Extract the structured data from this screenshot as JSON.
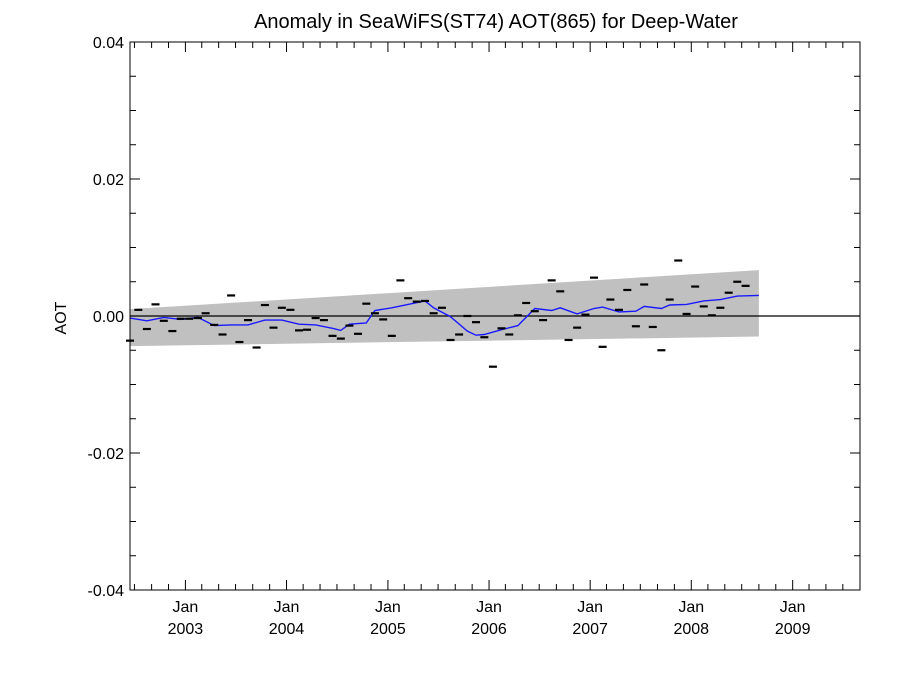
{
  "chart_data": {
    "type": "scatter",
    "title": "Anomaly in SeaWiFS(ST74) AOT(865) for Deep-Water",
    "xlabel": "",
    "ylabel": "AOT",
    "ylim": [
      -0.04,
      0.04
    ],
    "xlim": [
      "2002-06-15",
      "2009-09-01"
    ],
    "yticks": [
      "0.04",
      "0.02",
      "0.00",
      "-0.02",
      "-0.04"
    ],
    "xticks": [
      {
        "date": "2003-01-01",
        "line1": "Jan",
        "line2": "2003"
      },
      {
        "date": "2004-01-01",
        "line1": "Jan",
        "line2": "2004"
      },
      {
        "date": "2005-01-01",
        "line1": "Jan",
        "line2": "2005"
      },
      {
        "date": "2006-01-01",
        "line1": "Jan",
        "line2": "2006"
      },
      {
        "date": "2007-01-01",
        "line1": "Jan",
        "line2": "2007"
      },
      {
        "date": "2008-01-01",
        "line1": "Jan",
        "line2": "2008"
      },
      {
        "date": "2009-01-01",
        "line1": "Jan",
        "line2": "2009"
      }
    ],
    "grid": false,
    "legend": "none",
    "colors": {
      "points": "#000000",
      "smoothed": "#1a1aff",
      "band": "#c0c0c0",
      "zero_line": "#000000"
    },
    "points": [
      {
        "x": "2002-06-15",
        "y": -0.0036
      },
      {
        "x": "2002-07-15",
        "y": 0.0009
      },
      {
        "x": "2002-08-15",
        "y": -0.0019
      },
      {
        "x": "2002-09-15",
        "y": 0.0017
      },
      {
        "x": "2002-10-15",
        "y": -0.0007
      },
      {
        "x": "2002-11-15",
        "y": -0.0022
      },
      {
        "x": "2002-12-15",
        "y": -0.0004
      },
      {
        "x": "2003-01-15",
        "y": -0.0004
      },
      {
        "x": "2003-02-15",
        "y": -0.0003
      },
      {
        "x": "2003-03-15",
        "y": 0.0004
      },
      {
        "x": "2003-04-15",
        "y": -0.0013
      },
      {
        "x": "2003-05-15",
        "y": -0.0027
      },
      {
        "x": "2003-06-15",
        "y": 0.003
      },
      {
        "x": "2003-07-15",
        "y": -0.0038
      },
      {
        "x": "2003-08-15",
        "y": -0.0006
      },
      {
        "x": "2003-09-15",
        "y": -0.0046
      },
      {
        "x": "2003-10-15",
        "y": 0.0016
      },
      {
        "x": "2003-11-15",
        "y": -0.0017
      },
      {
        "x": "2003-12-15",
        "y": 0.0012
      },
      {
        "x": "2004-01-15",
        "y": 0.0009
      },
      {
        "x": "2004-02-15",
        "y": -0.0021
      },
      {
        "x": "2004-03-15",
        "y": -0.002
      },
      {
        "x": "2004-04-15",
        "y": -0.0003
      },
      {
        "x": "2004-05-15",
        "y": -0.0006
      },
      {
        "x": "2004-06-15",
        "y": -0.0029
      },
      {
        "x": "2004-07-15",
        "y": -0.0033
      },
      {
        "x": "2004-08-15",
        "y": -0.0014
      },
      {
        "x": "2004-09-15",
        "y": -0.0026
      },
      {
        "x": "2004-10-15",
        "y": 0.0018
      },
      {
        "x": "2004-11-15",
        "y": 0.0004
      },
      {
        "x": "2004-12-15",
        "y": -0.0005
      },
      {
        "x": "2005-01-15",
        "y": -0.0029
      },
      {
        "x": "2005-02-15",
        "y": 0.0052
      },
      {
        "x": "2005-03-15",
        "y": 0.0026
      },
      {
        "x": "2005-04-15",
        "y": 0.0021
      },
      {
        "x": "2005-05-15",
        "y": 0.0022
      },
      {
        "x": "2005-06-15",
        "y": 0.0004
      },
      {
        "x": "2005-07-15",
        "y": 0.0012
      },
      {
        "x": "2005-08-15",
        "y": -0.0035
      },
      {
        "x": "2005-09-15",
        "y": -0.0027
      },
      {
        "x": "2005-10-15",
        "y": 0.0
      },
      {
        "x": "2005-11-15",
        "y": -0.0009
      },
      {
        "x": "2005-12-15",
        "y": -0.0031
      },
      {
        "x": "2006-01-15",
        "y": -0.0074
      },
      {
        "x": "2006-02-15",
        "y": -0.0018
      },
      {
        "x": "2006-03-15",
        "y": -0.0027
      },
      {
        "x": "2006-04-15",
        "y": 0.0001
      },
      {
        "x": "2006-05-15",
        "y": 0.0019
      },
      {
        "x": "2006-06-15",
        "y": 0.0007
      },
      {
        "x": "2006-07-15",
        "y": -0.0006
      },
      {
        "x": "2006-08-15",
        "y": 0.0052
      },
      {
        "x": "2006-09-15",
        "y": 0.0036
      },
      {
        "x": "2006-10-15",
        "y": -0.0035
      },
      {
        "x": "2006-11-15",
        "y": -0.0017
      },
      {
        "x": "2006-12-15",
        "y": 0.0002
      },
      {
        "x": "2007-01-15",
        "y": 0.0056
      },
      {
        "x": "2007-02-15",
        "y": -0.0045
      },
      {
        "x": "2007-03-15",
        "y": 0.0024
      },
      {
        "x": "2007-04-15",
        "y": 0.0009
      },
      {
        "x": "2007-05-15",
        "y": 0.0038
      },
      {
        "x": "2007-06-15",
        "y": -0.0015
      },
      {
        "x": "2007-07-15",
        "y": 0.0046
      },
      {
        "x": "2007-08-15",
        "y": -0.0016
      },
      {
        "x": "2007-09-15",
        "y": -0.005
      },
      {
        "x": "2007-10-15",
        "y": 0.0024
      },
      {
        "x": "2007-11-15",
        "y": 0.0081
      },
      {
        "x": "2007-12-15",
        "y": 0.0003
      },
      {
        "x": "2008-01-15",
        "y": 0.0043
      },
      {
        "x": "2008-02-15",
        "y": 0.0014
      },
      {
        "x": "2008-03-15",
        "y": 0.0001
      },
      {
        "x": "2008-04-15",
        "y": 0.0012
      },
      {
        "x": "2008-05-15",
        "y": 0.0034
      },
      {
        "x": "2008-06-15",
        "y": 0.005
      },
      {
        "x": "2008-07-15",
        "y": 0.0044
      }
    ],
    "smoothed": [
      {
        "x": "2002-06-15",
        "y": -0.0003
      },
      {
        "x": "2002-08-15",
        "y": -0.0007
      },
      {
        "x": "2002-10-15",
        "y": -0.0002
      },
      {
        "x": "2002-12-15",
        "y": -0.0005
      },
      {
        "x": "2003-02-15",
        "y": -0.0002
      },
      {
        "x": "2003-04-15",
        "y": -0.0014
      },
      {
        "x": "2003-06-15",
        "y": -0.0013
      },
      {
        "x": "2003-08-15",
        "y": -0.0013
      },
      {
        "x": "2003-10-15",
        "y": -0.0006
      },
      {
        "x": "2003-12-15",
        "y": -0.0006
      },
      {
        "x": "2004-02-15",
        "y": -0.0012
      },
      {
        "x": "2004-04-15",
        "y": -0.0013
      },
      {
        "x": "2004-06-15",
        "y": -0.0018
      },
      {
        "x": "2004-07-15",
        "y": -0.0021
      },
      {
        "x": "2004-08-15",
        "y": -0.0012
      },
      {
        "x": "2004-10-15",
        "y": -0.001
      },
      {
        "x": "2004-11-15",
        "y": 0.0008
      },
      {
        "x": "2005-01-15",
        "y": 0.0012
      },
      {
        "x": "2005-03-15",
        "y": 0.0017
      },
      {
        "x": "2005-05-15",
        "y": 0.0022
      },
      {
        "x": "2005-06-15",
        "y": 0.0012
      },
      {
        "x": "2005-08-15",
        "y": -0.0001
      },
      {
        "x": "2005-10-15",
        "y": -0.0022
      },
      {
        "x": "2005-11-15",
        "y": -0.0028
      },
      {
        "x": "2005-12-15",
        "y": -0.0027
      },
      {
        "x": "2006-02-15",
        "y": -0.002
      },
      {
        "x": "2006-04-15",
        "y": -0.0014
      },
      {
        "x": "2006-06-15",
        "y": 0.0011
      },
      {
        "x": "2006-08-15",
        "y": 0.0008
      },
      {
        "x": "2006-09-15",
        "y": 0.0012
      },
      {
        "x": "2006-11-15",
        "y": 0.0003
      },
      {
        "x": "2007-01-15",
        "y": 0.0011
      },
      {
        "x": "2007-02-15",
        "y": 0.0013
      },
      {
        "x": "2007-04-15",
        "y": 0.0006
      },
      {
        "x": "2007-06-15",
        "y": 0.0007
      },
      {
        "x": "2007-07-15",
        "y": 0.0014
      },
      {
        "x": "2007-09-15",
        "y": 0.0011
      },
      {
        "x": "2007-10-15",
        "y": 0.0016
      },
      {
        "x": "2007-12-15",
        "y": 0.0017
      },
      {
        "x": "2008-02-15",
        "y": 0.0022
      },
      {
        "x": "2008-04-15",
        "y": 0.0024
      },
      {
        "x": "2008-06-15",
        "y": 0.0029
      },
      {
        "x": "2008-09-01",
        "y": 0.003
      }
    ],
    "band": {
      "upper": [
        {
          "x": "2002-06-15",
          "y": 0.001
        },
        {
          "x": "2008-09-01",
          "y": 0.0067
        }
      ],
      "lower": [
        {
          "x": "2002-06-15",
          "y": -0.0044
        },
        {
          "x": "2008-09-01",
          "y": -0.003
        }
      ]
    }
  }
}
